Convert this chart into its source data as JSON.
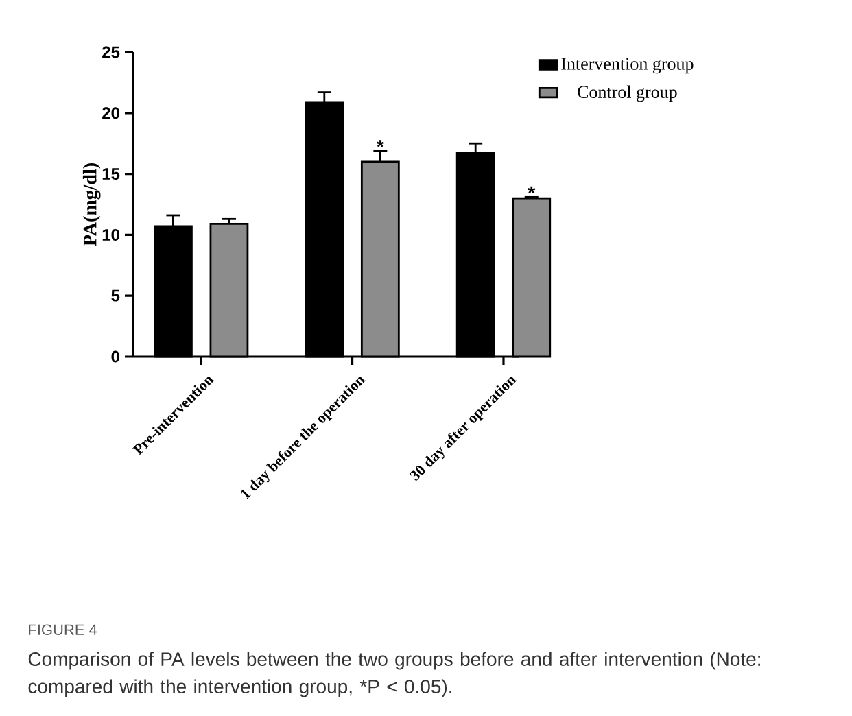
{
  "chart_data": {
    "type": "bar",
    "ylabel": "PA(mg/dl)",
    "categories": [
      "Pre-intervention",
      "1 day before the operation",
      "30 day after operation"
    ],
    "series": [
      {
        "name": "Intervention group",
        "color": "#000000",
        "values": [
          10.7,
          20.9,
          16.7
        ],
        "errors": [
          0.9,
          0.8,
          0.8
        ]
      },
      {
        "name": "Control group",
        "color": "#8c8c8c",
        "values": [
          10.9,
          16.0,
          13.0
        ],
        "errors": [
          0.4,
          0.9,
          0.1
        ],
        "value_labels": [
          null,
          "*",
          "*"
        ]
      }
    ],
    "ylim": [
      0,
      25
    ],
    "yticks": [
      0,
      5,
      10,
      15,
      20,
      25
    ],
    "legend": "top right",
    "annotations": [
      "FIGURE 4",
      "Comparison of PA levels between the two groups before and after intervention (Note: compared with the intervention group, *P < 0.05)."
    ]
  }
}
